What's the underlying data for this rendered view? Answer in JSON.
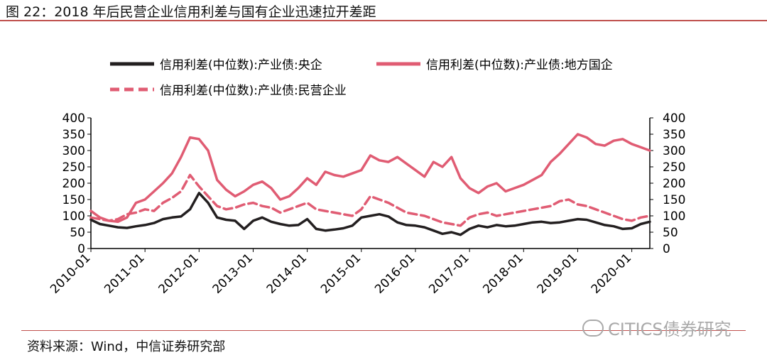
{
  "figure_title": "图 22：2018 年后民营企业信用利差与国有企业迅速拉开差距",
  "source": "资料来源：Wind，中信证券研究部",
  "watermark": "CITICS债券研究",
  "watermark_icon": "wechat-icon",
  "colors": {
    "accent": "#c0504d",
    "central_soe": "#231f20",
    "local_soe": "#e05c73",
    "private": "#e05c73"
  },
  "chart_data": {
    "type": "line",
    "legend_position": "top",
    "grid": false,
    "x_ticks": [
      "2010-01",
      "2011-01",
      "2012-01",
      "2013-01",
      "2014-01",
      "2015-01",
      "2016-01",
      "2017-01",
      "2018-01",
      "2019-01",
      "2020-01"
    ],
    "x_range": [
      "2010-01",
      "2020-05"
    ],
    "ylim_left": [
      0,
      400
    ],
    "ylim_right": [
      0,
      400
    ],
    "y_ticks": [
      0,
      50,
      100,
      150,
      200,
      250,
      300,
      350,
      400
    ],
    "x": [
      "2010-01",
      "2010-03",
      "2010-05",
      "2010-07",
      "2010-09",
      "2010-11",
      "2011-01",
      "2011-03",
      "2011-05",
      "2011-07",
      "2011-09",
      "2011-11",
      "2012-01",
      "2012-03",
      "2012-05",
      "2012-07",
      "2012-09",
      "2012-11",
      "2013-01",
      "2013-03",
      "2013-05",
      "2013-07",
      "2013-09",
      "2013-11",
      "2014-01",
      "2014-03",
      "2014-05",
      "2014-07",
      "2014-09",
      "2014-11",
      "2015-01",
      "2015-03",
      "2015-05",
      "2015-07",
      "2015-09",
      "2015-11",
      "2016-01",
      "2016-03",
      "2016-05",
      "2016-07",
      "2016-09",
      "2016-11",
      "2017-01",
      "2017-03",
      "2017-05",
      "2017-07",
      "2017-09",
      "2017-11",
      "2018-01",
      "2018-03",
      "2018-05",
      "2018-07",
      "2018-09",
      "2018-11",
      "2019-01",
      "2019-03",
      "2019-05",
      "2019-07",
      "2019-09",
      "2019-11",
      "2020-01",
      "2020-03",
      "2020-05"
    ],
    "series": [
      {
        "name": "信用利差(中位数):产业债:央企",
        "style": "solid",
        "axis": "left",
        "values": [
          88,
          75,
          70,
          65,
          63,
          68,
          72,
          78,
          90,
          95,
          98,
          120,
          170,
          140,
          95,
          88,
          85,
          60,
          85,
          95,
          82,
          75,
          70,
          72,
          90,
          60,
          55,
          58,
          62,
          70,
          95,
          100,
          105,
          98,
          80,
          72,
          70,
          65,
          55,
          45,
          50,
          42,
          60,
          70,
          65,
          72,
          68,
          70,
          75,
          80,
          82,
          78,
          80,
          85,
          90,
          88,
          80,
          72,
          68,
          60,
          62,
          75,
          82
        ]
      },
      {
        "name": "信用利差(中位数):产业债:地方国企",
        "style": "solid",
        "axis": "left",
        "values": [
          115,
          95,
          85,
          82,
          95,
          140,
          150,
          175,
          200,
          230,
          280,
          340,
          335,
          300,
          210,
          180,
          160,
          175,
          195,
          205,
          185,
          150,
          160,
          185,
          215,
          195,
          235,
          225,
          220,
          230,
          240,
          285,
          270,
          265,
          280,
          260,
          240,
          220,
          265,
          250,
          280,
          215,
          185,
          170,
          190,
          200,
          175,
          185,
          195,
          210,
          225,
          265,
          290,
          320,
          350,
          340,
          320,
          315,
          330,
          335,
          320,
          310,
          300
        ]
      },
      {
        "name": "信用利差(中位数):产业债:民营企业",
        "style": "dashed",
        "axis": "left",
        "values": [
          95,
          90,
          85,
          90,
          105,
          110,
          120,
          115,
          140,
          155,
          175,
          225,
          190,
          160,
          130,
          120,
          125,
          135,
          140,
          130,
          125,
          110,
          120,
          130,
          140,
          120,
          115,
          110,
          105,
          100,
          120,
          160,
          150,
          140,
          125,
          110,
          105,
          100,
          90,
          80,
          75,
          70,
          95,
          105,
          110,
          100,
          105,
          110,
          115,
          120,
          125,
          130,
          145,
          150,
          135,
          130,
          120,
          110,
          100,
          90,
          85,
          95,
          100
        ]
      }
    ]
  }
}
